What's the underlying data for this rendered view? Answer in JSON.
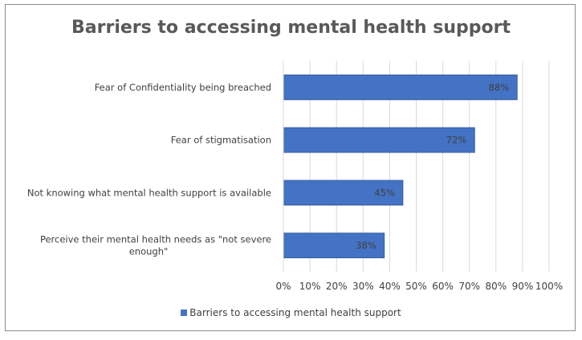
{
  "chart_data": {
    "type": "bar",
    "orientation": "horizontal",
    "title": "Barriers to accessing mental health support",
    "categories": [
      [
        "Fear of Confidentiality being breached"
      ],
      [
        "Fear of stigmatisation"
      ],
      [
        "Not knowing what mental health support is available"
      ],
      [
        "Perceive their mental health needs as \"not severe",
        "enough\""
      ]
    ],
    "series": [
      {
        "name": "Barriers to accessing mental health support",
        "values": [
          88,
          72,
          45,
          38
        ],
        "data_labels": [
          "88%",
          "72%",
          "45%",
          "38%"
        ],
        "color": "#4472c4"
      }
    ],
    "xlim": [
      0,
      100
    ],
    "ticks": [
      "0%",
      "10%",
      "20%",
      "30%",
      "40%",
      "50%",
      "60%",
      "70%",
      "80%",
      "90%",
      "100%"
    ],
    "grid": "vertical",
    "legend_position": "bottom"
  }
}
